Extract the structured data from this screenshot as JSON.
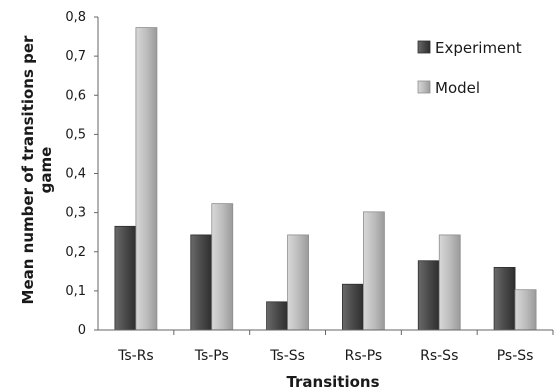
{
  "chart_data": {
    "type": "bar",
    "categories": [
      "Ts-Rs",
      "Ts-Ps",
      "Ts-Ss",
      "Rs-Ps",
      "Rs-Ss",
      "Ps-Ss"
    ],
    "series": [
      {
        "name": "Experiment",
        "color": "#4a4a4a",
        "values": [
          0.265,
          0.243,
          0.072,
          0.117,
          0.177,
          0.16
        ]
      },
      {
        "name": "Model",
        "color": "#bdbdbd",
        "values": [
          0.773,
          0.323,
          0.243,
          0.302,
          0.243,
          0.103
        ]
      }
    ],
    "y_ticks": [
      "0",
      "0,1",
      "0,2",
      "0,3",
      "0,4",
      "0,5",
      "0,6",
      "0,7",
      "0,8"
    ],
    "ylim": [
      0,
      0.8
    ],
    "xlabel": "Transitions",
    "ylabel_line1": "Mean number of transitions per",
    "ylabel_line2": "game",
    "grid": false,
    "legend_position": "top-right"
  }
}
